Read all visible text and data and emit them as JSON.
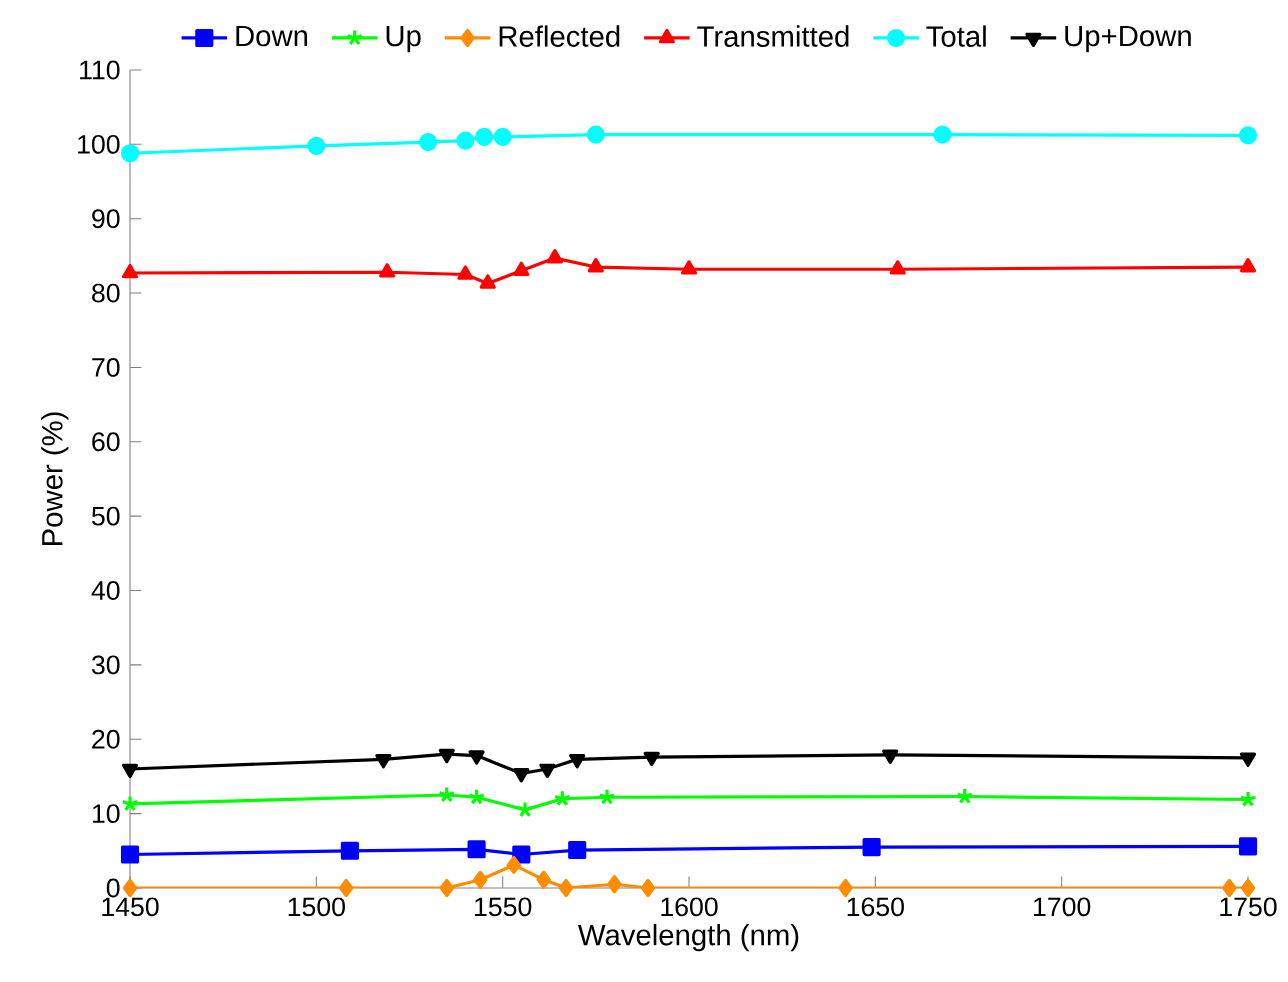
{
  "chart_data": {
    "type": "line",
    "xlabel": "Wavelength (nm)",
    "ylabel": "Power (%)",
    "xlim": [
      1450,
      1750
    ],
    "ylim": [
      0,
      110
    ],
    "xticks": [
      1450,
      1500,
      1550,
      1600,
      1650,
      1700,
      1750
    ],
    "yticks": [
      0,
      10,
      20,
      30,
      40,
      50,
      60,
      70,
      80,
      90,
      100,
      110
    ],
    "grid": false,
    "legend": "top",
    "line_style": "solid",
    "series": [
      {
        "name": "Down",
        "color": "#0000ff",
        "marker": "square",
        "x": [
          1450,
          1509,
          1543,
          1555,
          1570,
          1649,
          1750
        ],
        "values": [
          4.5,
          5.0,
          5.2,
          4.5,
          5.1,
          5.5,
          5.6
        ]
      },
      {
        "name": "Up",
        "color": "#00ff00",
        "marker": "cross",
        "x": [
          1450,
          1535,
          1543,
          1556,
          1566,
          1578,
          1674,
          1750
        ],
        "values": [
          11.3,
          12.5,
          12.2,
          10.5,
          12.0,
          12.2,
          12.3,
          11.9
        ]
      },
      {
        "name": "Reflected",
        "color": "#ff8c00",
        "marker": "diamond",
        "x": [
          1450,
          1508,
          1535,
          1544,
          1553,
          1561,
          1567,
          1580,
          1589,
          1642,
          1745,
          1750
        ],
        "values": [
          0,
          0,
          0,
          1.1,
          3.1,
          1.1,
          0,
          0.5,
          0,
          0,
          0,
          0
        ]
      },
      {
        "name": "Transmitted",
        "color": "#ff0000",
        "marker": "triangle",
        "x": [
          1450,
          1519,
          1540,
          1546,
          1555,
          1564,
          1575,
          1600,
          1656,
          1750
        ],
        "values": [
          82.7,
          82.8,
          82.5,
          81.3,
          83.0,
          84.7,
          83.5,
          83.2,
          83.2,
          83.5
        ]
      },
      {
        "name": "Total",
        "color": "#00ffff",
        "marker": "circle",
        "x": [
          1450,
          1500,
          1530,
          1540,
          1545,
          1550,
          1575,
          1668,
          1750
        ],
        "values": [
          98.8,
          99.8,
          100.3,
          100.5,
          101.0,
          101.0,
          101.3,
          101.3,
          101.2
        ]
      },
      {
        "name": "Up+Down",
        "color": "#000000",
        "marker": "triangle",
        "x": [
          1450,
          1518,
          1535,
          1543,
          1555,
          1562,
          1570,
          1590,
          1654,
          1750
        ],
        "values": [
          16.0,
          17.3,
          18.0,
          17.8,
          15.4,
          16.0,
          17.3,
          17.6,
          17.9,
          17.5
        ]
      }
    ]
  }
}
